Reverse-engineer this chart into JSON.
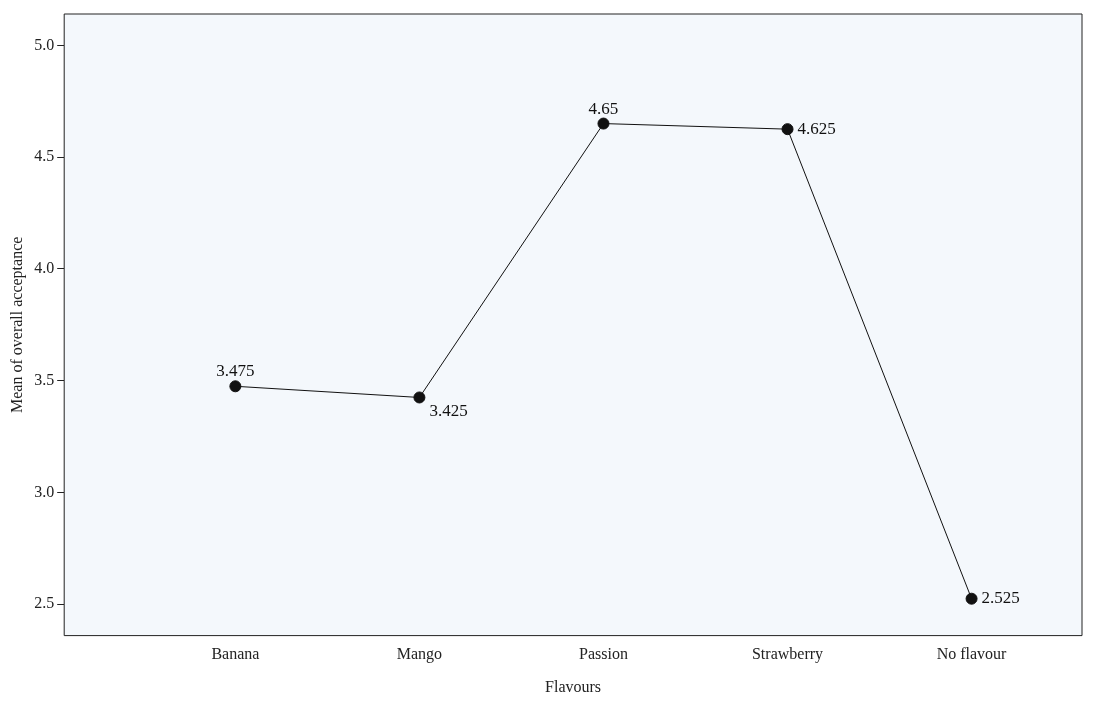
{
  "chart_data": {
    "type": "line",
    "xlabel": "Flavours",
    "ylabel": "Mean of overall acceptance",
    "categories": [
      "Banana",
      "Mango",
      "Passion",
      "Strawberry",
      "No flavour"
    ],
    "values": [
      3.475,
      3.425,
      4.65,
      4.625,
      2.525
    ],
    "color": "#111111",
    "marker": "circle",
    "line_style": "solid",
    "data_labels": true,
    "ylim": [
      2.36,
      5.14
    ],
    "yticks": [
      {
        "value": 2.5,
        "label": "2.5"
      },
      {
        "value": 3,
        "label": "3.0"
      },
      {
        "value": 3.5,
        "label": "3.5"
      },
      {
        "value": 4,
        "label": "4.0"
      },
      {
        "value": 4.5,
        "label": "4.5"
      },
      {
        "value": 5,
        "label": "5.0"
      }
    ],
    "grid": false,
    "legend": false
  }
}
